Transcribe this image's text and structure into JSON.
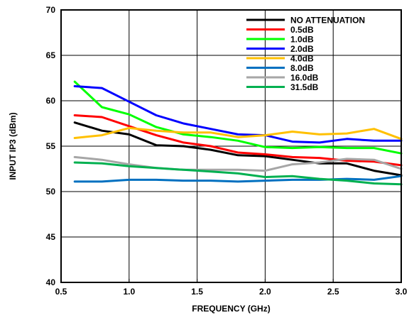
{
  "chart_data": {
    "type": "line",
    "title": "",
    "xlabel": "FREQUENCY (GHz)",
    "ylabel": "INPUT IP3 (dBm)",
    "xlim": [
      0.5,
      3.0
    ],
    "ylim": [
      40,
      70
    ],
    "xticks": [
      0.5,
      1.0,
      1.5,
      2.0,
      2.5,
      3.0
    ],
    "xtick_labels": [
      "0.5",
      "1.0",
      "1.5",
      "2.0",
      "2.5",
      "3.0"
    ],
    "yticks": [
      40,
      45,
      50,
      55,
      60,
      65,
      70
    ],
    "ytick_labels": [
      "40",
      "45",
      "50",
      "55",
      "60",
      "65",
      "70"
    ],
    "grid": true,
    "legend_position": "top-right",
    "series": [
      {
        "name": "NO ATTENUATION",
        "color": "#000000",
        "x": [
          0.6,
          0.8,
          1.0,
          1.2,
          1.4,
          1.6,
          1.8,
          2.0,
          2.2,
          2.4,
          2.6,
          2.8,
          3.0
        ],
        "y": [
          57.6,
          56.7,
          56.3,
          55.1,
          55.0,
          54.6,
          54.0,
          53.9,
          53.5,
          53.1,
          53.1,
          52.3,
          51.8
        ]
      },
      {
        "name": "0.5dB",
        "color": "#ff0000",
        "x": [
          0.6,
          0.8,
          1.0,
          1.2,
          1.4,
          1.6,
          1.8,
          2.0,
          2.2,
          2.4,
          2.6,
          2.8,
          3.0
        ],
        "y": [
          58.4,
          58.2,
          57.2,
          56.2,
          55.4,
          55.0,
          54.3,
          54.1,
          53.8,
          53.7,
          53.4,
          53.3,
          52.9
        ]
      },
      {
        "name": "1.0dB",
        "color": "#00ff00",
        "x": [
          0.6,
          0.8,
          1.0,
          1.2,
          1.4,
          1.6,
          1.8,
          2.0,
          2.2,
          2.4,
          2.6,
          2.8,
          3.0
        ],
        "y": [
          62.1,
          59.3,
          58.5,
          57.1,
          56.3,
          56.0,
          55.6,
          54.9,
          54.8,
          54.9,
          54.8,
          54.8,
          54.2
        ]
      },
      {
        "name": "2.0dB",
        "color": "#0000ff",
        "x": [
          0.6,
          0.8,
          1.0,
          1.2,
          1.4,
          1.6,
          1.8,
          2.0,
          2.2,
          2.4,
          2.6,
          2.8,
          3.0
        ],
        "y": [
          61.6,
          61.4,
          59.9,
          58.4,
          57.5,
          56.9,
          56.3,
          56.2,
          55.5,
          55.4,
          55.8,
          55.6,
          55.6
        ]
      },
      {
        "name": "4.0dB",
        "color": "#ffc000",
        "x": [
          0.6,
          0.8,
          1.0,
          1.2,
          1.4,
          1.6,
          1.8,
          2.0,
          2.2,
          2.4,
          2.6,
          2.8,
          3.0
        ],
        "y": [
          55.9,
          56.2,
          57.0,
          56.7,
          56.5,
          56.5,
          56.0,
          56.2,
          56.6,
          56.3,
          56.4,
          56.9,
          55.8
        ]
      },
      {
        "name": "8.0dB",
        "color": "#0070c0",
        "x": [
          0.6,
          0.8,
          1.0,
          1.2,
          1.4,
          1.6,
          1.8,
          2.0,
          2.2,
          2.4,
          2.6,
          2.8,
          3.0
        ],
        "y": [
          51.1,
          51.1,
          51.3,
          51.3,
          51.2,
          51.2,
          51.1,
          51.2,
          51.3,
          51.3,
          51.4,
          51.3,
          51.7
        ]
      },
      {
        "name": "16.0dB",
        "color": "#a6a6a6",
        "x": [
          0.6,
          0.8,
          1.0,
          1.2,
          1.4,
          1.6,
          1.8,
          2.0,
          2.2,
          2.4,
          2.6,
          2.8,
          3.0
        ],
        "y": [
          53.8,
          53.5,
          53.0,
          52.6,
          52.4,
          52.4,
          52.4,
          52.3,
          53.0,
          53.2,
          53.6,
          53.5,
          52.5
        ]
      },
      {
        "name": "31.5dB",
        "color": "#00b050",
        "x": [
          0.6,
          0.8,
          1.0,
          1.2,
          1.4,
          1.6,
          1.8,
          2.0,
          2.2,
          2.4,
          2.6,
          2.8,
          3.0
        ],
        "y": [
          53.2,
          53.1,
          52.8,
          52.6,
          52.4,
          52.2,
          52.0,
          51.6,
          51.7,
          51.4,
          51.2,
          50.9,
          50.8
        ]
      }
    ]
  }
}
